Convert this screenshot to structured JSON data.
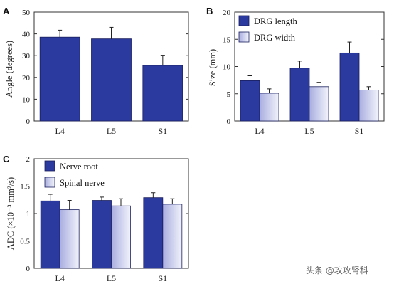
{
  "chart_data": [
    {
      "panel": "A",
      "type": "bar",
      "ylabel": "Angle (degrees)",
      "ylim": [
        0,
        50
      ],
      "yticks": [
        0,
        10,
        20,
        30,
        40,
        50
      ],
      "categories": [
        "L4",
        "L5",
        "S1"
      ],
      "series": [
        {
          "values": [
            38.5,
            37.7,
            25.5
          ],
          "errors": [
            3.2,
            5.3,
            4.7
          ],
          "color": "#2b3a9f"
        }
      ],
      "legend": "none"
    },
    {
      "panel": "B",
      "type": "bar",
      "ylabel": "Size (mm)",
      "ylim": [
        0,
        20
      ],
      "yticks": [
        0,
        5,
        10,
        15,
        20
      ],
      "categories": [
        "L4",
        "L5",
        "S1"
      ],
      "series": [
        {
          "name": "DRG length",
          "values": [
            7.4,
            9.7,
            12.5
          ],
          "errors": [
            0.9,
            1.3,
            2.0
          ],
          "color": "#2b3a9f"
        },
        {
          "name": "DRG width",
          "values": [
            5.1,
            6.3,
            5.7
          ],
          "errors": [
            0.8,
            0.8,
            0.6
          ],
          "color": "#c8cbe9"
        }
      ],
      "legend": "top-left"
    },
    {
      "panel": "C",
      "type": "bar",
      "ylabel": "ADC (×10⁻³ mm²/s)",
      "ylim": [
        0,
        2
      ],
      "yticks": [
        "0",
        "0.5",
        "1",
        "1.5",
        "2"
      ],
      "categories": [
        "L4",
        "L5",
        "S1"
      ],
      "series": [
        {
          "name": "Nerve root",
          "values": [
            1.23,
            1.24,
            1.29
          ],
          "errors": [
            0.12,
            0.06,
            0.09
          ],
          "color": "#2b3a9f"
        },
        {
          "name": "Spinal nerve",
          "values": [
            1.07,
            1.14,
            1.17
          ],
          "errors": [
            0.17,
            0.13,
            0.1
          ],
          "color": "#c8cbe9"
        }
      ],
      "legend": "top-left"
    }
  ],
  "watermark": "头条 @攻攻肾科"
}
